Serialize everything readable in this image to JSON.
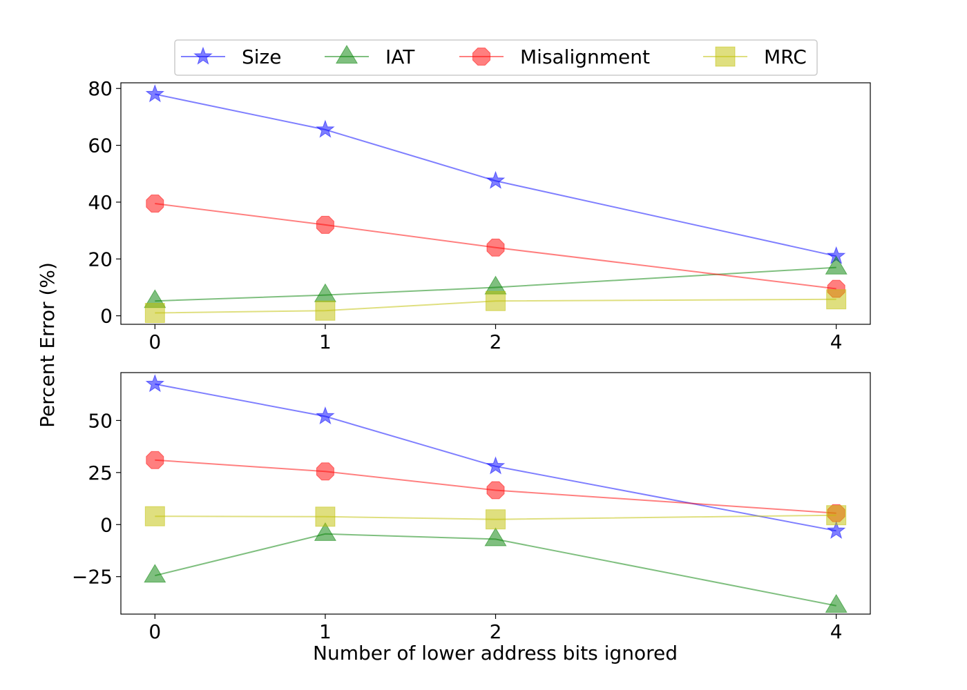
{
  "figure": {
    "ylabel": "Percent Error (%)",
    "xlabel": "Number of lower address bits ignored"
  },
  "legend": {
    "placement": "top-center, above charts",
    "entries": [
      {
        "name": "Size",
        "color": "#0000ff",
        "marker": "star"
      },
      {
        "name": "IAT",
        "color": "#008000",
        "marker": "triangle"
      },
      {
        "name": "Misalignment",
        "color": "#ff0000",
        "marker": "octagon"
      },
      {
        "name": "MRC",
        "color": "#bfbf00",
        "marker": "square"
      }
    ]
  },
  "chart_data": [
    {
      "type": "line",
      "x": [
        0,
        1,
        2,
        4
      ],
      "xticks": [
        "0",
        "1",
        "2",
        "4"
      ],
      "xlim": [
        -0.2,
        4.2
      ],
      "ylim": [
        -3,
        82
      ],
      "yticks": [
        0,
        20,
        40,
        60,
        80
      ],
      "ytick_labels": [
        "0",
        "20",
        "40",
        "60",
        "80"
      ],
      "grid": false,
      "series": [
        {
          "name": "Size",
          "color": "#0000ff",
          "marker": "star",
          "values": [
            78,
            65.5,
            47.5,
            21
          ]
        },
        {
          "name": "IAT",
          "color": "#008000",
          "marker": "triangle",
          "values": [
            5.2,
            7.3,
            10,
            17
          ]
        },
        {
          "name": "Misalignment",
          "color": "#ff0000",
          "marker": "octagon",
          "values": [
            39.5,
            32,
            24,
            9.5
          ]
        },
        {
          "name": "MRC",
          "color": "#bfbf00",
          "marker": "square",
          "values": [
            1,
            1.8,
            5.2,
            5.8
          ]
        }
      ]
    },
    {
      "type": "line",
      "x": [
        0,
        1,
        2,
        4
      ],
      "xticks": [
        "0",
        "1",
        "2",
        "4"
      ],
      "xlim": [
        -0.2,
        4.2
      ],
      "ylim": [
        -43,
        73
      ],
      "yticks": [
        -25,
        0,
        25,
        50
      ],
      "ytick_labels": [
        "−25",
        "0",
        "25",
        "50"
      ],
      "grid": false,
      "series": [
        {
          "name": "Size",
          "color": "#0000ff",
          "marker": "star",
          "values": [
            67.5,
            52,
            28,
            -3
          ]
        },
        {
          "name": "IAT",
          "color": "#008000",
          "marker": "triangle",
          "values": [
            -24.5,
            -4.5,
            -7,
            -39
          ]
        },
        {
          "name": "Misalignment",
          "color": "#ff0000",
          "marker": "octagon",
          "values": [
            31,
            25.5,
            16.5,
            5.5
          ]
        },
        {
          "name": "MRC",
          "color": "#bfbf00",
          "marker": "square",
          "values": [
            4,
            3.8,
            2.5,
            4.5
          ]
        }
      ]
    }
  ]
}
